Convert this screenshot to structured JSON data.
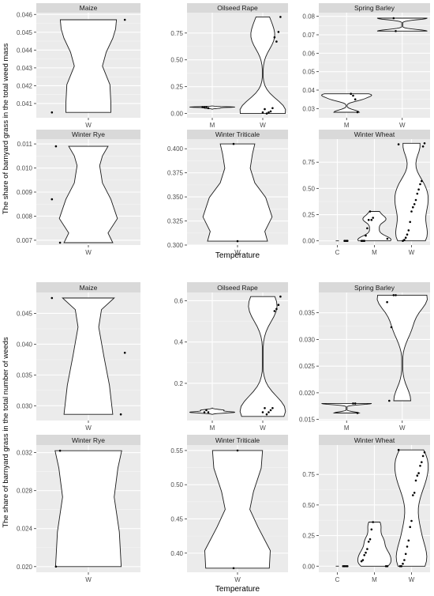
{
  "chart_data": [
    {
      "type": "violin",
      "ylabel": "The share of barnyard grass in the total weed mass",
      "xlabel": "Temperature",
      "panels": [
        {
          "name": "Maize",
          "categories": [
            "W"
          ],
          "ylim": [
            0.0402,
            0.0461
          ],
          "yticks": [
            0.041,
            0.042,
            0.043,
            0.044,
            0.045,
            0.046
          ],
          "ytick_labels": [
            "0.041",
            "0.042",
            "0.043",
            "0.044",
            "0.045",
            "0.046"
          ],
          "series": [
            {
              "category": "W",
              "min": 0.0405,
              "max": 0.0457,
              "points": [
                0.0405,
                0.0457
              ]
            }
          ]
        },
        {
          "name": "Oilseed Rape",
          "categories": [
            "M",
            "W"
          ],
          "ylim": [
            -0.04,
            0.94
          ],
          "yticks": [
            0.0,
            0.25,
            0.5,
            0.75
          ],
          "ytick_labels": [
            "0.00",
            "0.25",
            "0.50",
            "0.75"
          ],
          "series": [
            {
              "category": "M",
              "min": 0.04,
              "max": 0.07,
              "points": [
                0.05,
                0.06,
                0.06,
                0.06
              ]
            },
            {
              "category": "W",
              "min": 0.0,
              "max": 0.9,
              "points": [
                0.9,
                0.76,
                0.67,
                0.71,
                0.05,
                0.02,
                0.01,
                0.0,
                0.04,
                0.01
              ]
            }
          ]
        },
        {
          "name": "Spring Barley",
          "categories": [
            "M",
            "W"
          ],
          "ylim": [
            0.025,
            0.082
          ],
          "yticks": [
            0.03,
            0.04,
            0.05,
            0.06,
            0.07,
            0.08
          ],
          "ytick_labels": [
            "0.03",
            "0.04",
            "0.05",
            "0.06",
            "0.07",
            "0.08"
          ],
          "series": [
            {
              "category": "M",
              "min": 0.028,
              "max": 0.038,
              "points": [
                0.028,
                0.035,
                0.037,
                0.038
              ]
            },
            {
              "category": "W",
              "min": 0.072,
              "max": 0.079,
              "points": [
                0.072,
                0.079
              ]
            }
          ]
        },
        {
          "name": "Winter Rye",
          "categories": [
            "W"
          ],
          "ylim": [
            0.0068,
            0.0112
          ],
          "yticks": [
            0.007,
            0.008,
            0.009,
            0.01,
            0.011
          ],
          "ytick_labels": [
            "0.007",
            "0.008",
            "0.009",
            "0.010",
            "0.011"
          ],
          "series": [
            {
              "category": "W",
              "min": 0.0069,
              "max": 0.0109,
              "points": [
                0.0069,
                0.0109,
                0.0087
              ]
            }
          ]
        },
        {
          "name": "Winter Triticale",
          "categories": [
            "W"
          ],
          "ylim": [
            0.3,
            0.41
          ],
          "yticks": [
            0.3,
            0.325,
            0.35,
            0.375,
            0.4
          ],
          "ytick_labels": [
            "0.300",
            "0.325",
            "0.350",
            "0.375",
            "0.400"
          ],
          "series": [
            {
              "category": "W",
              "min": 0.304,
              "max": 0.405,
              "points": [
                0.304,
                0.405
              ]
            }
          ]
        },
        {
          "name": "Winter Wheat",
          "categories": [
            "C",
            "M",
            "W"
          ],
          "ylim": [
            -0.04,
            0.97
          ],
          "yticks": [
            0.0,
            0.25,
            0.5,
            0.75
          ],
          "ytick_labels": [
            "0.00",
            "0.25",
            "0.50",
            "0.75"
          ],
          "series": [
            {
              "category": "C",
              "min": 0.0,
              "max": 0.0,
              "points": [
                0.0,
                0.0,
                0.0
              ]
            },
            {
              "category": "M",
              "min": 0.0,
              "max": 0.28,
              "points": [
                0.22,
                0.2,
                0.28,
                0.2,
                0.12,
                0.05,
                0.0,
                0.0,
                0.0,
                0.02
              ]
            },
            {
              "category": "W",
              "min": 0.0,
              "max": 0.93,
              "points": [
                0.92,
                0.93,
                0.9,
                0.57,
                0.54,
                0.49,
                0.45,
                0.39,
                0.35,
                0.32,
                0.28,
                0.18,
                0.1,
                0.06,
                0.03,
                0.01,
                0.0
              ]
            }
          ]
        }
      ]
    },
    {
      "type": "violin",
      "ylabel": "The share of barnyard grass in the total number of weeds",
      "xlabel": "Temperature",
      "panels": [
        {
          "name": "Maize",
          "categories": [
            "W"
          ],
          "ylim": [
            0.0276,
            0.0484
          ],
          "yticks": [
            0.03,
            0.035,
            0.04,
            0.045
          ],
          "ytick_labels": [
            "0.030",
            "0.035",
            "0.040",
            "0.045"
          ],
          "series": [
            {
              "category": "W",
              "min": 0.0286,
              "max": 0.0475,
              "points": [
                0.0475,
                0.0386,
                0.0286
              ]
            }
          ]
        },
        {
          "name": "Oilseed Rape",
          "categories": [
            "M",
            "W"
          ],
          "ylim": [
            0.02,
            0.64
          ],
          "yticks": [
            0.2,
            0.4,
            0.6
          ],
          "ytick_labels": [
            "0.2",
            "0.4",
            "0.6"
          ],
          "series": [
            {
              "category": "M",
              "min": 0.05,
              "max": 0.08,
              "points": [
                0.06,
                0.07,
                0.06
              ]
            },
            {
              "category": "W",
              "min": 0.04,
              "max": 0.62,
              "points": [
                0.62,
                0.58,
                0.56,
                0.55,
                0.08,
                0.07,
                0.06,
                0.05,
                0.08,
                0.06
              ]
            }
          ]
        },
        {
          "name": "Spring Barley",
          "categories": [
            "M",
            "W"
          ],
          "ylim": [
            0.0148,
            0.0388
          ],
          "yticks": [
            0.015,
            0.02,
            0.025,
            0.03,
            0.035
          ],
          "ytick_labels": [
            "0.015",
            "0.020",
            "0.025",
            "0.030",
            "0.035"
          ],
          "series": [
            {
              "category": "M",
              "min": 0.0162,
              "max": 0.018,
              "points": [
                0.0162,
                0.018,
                0.018
              ]
            },
            {
              "category": "W",
              "min": 0.0185,
              "max": 0.0383,
              "points": [
                0.0383,
                0.0383,
                0.0323,
                0.0185,
                0.037
              ]
            }
          ]
        },
        {
          "name": "Winter Rye",
          "categories": [
            "W"
          ],
          "ylim": [
            0.0194,
            0.0328
          ],
          "yticks": [
            0.02,
            0.024,
            0.028,
            0.032
          ],
          "ytick_labels": [
            "0.020",
            "0.024",
            "0.028",
            "0.032"
          ],
          "series": [
            {
              "category": "W",
              "min": 0.02,
              "max": 0.0322,
              "points": [
                0.0322,
                0.02
              ]
            }
          ]
        },
        {
          "name": "Winter Triticale",
          "categories": [
            "W"
          ],
          "ylim": [
            0.372,
            0.558
          ],
          "yticks": [
            0.4,
            0.45,
            0.5,
            0.55
          ],
          "ytick_labels": [
            "0.40",
            "0.45",
            "0.50",
            "0.55"
          ],
          "series": [
            {
              "category": "W",
              "min": 0.378,
              "max": 0.55,
              "points": [
                0.55,
                0.378
              ]
            }
          ]
        },
        {
          "name": "Winter Wheat",
          "categories": [
            "C",
            "M",
            "W"
          ],
          "ylim": [
            -0.05,
            0.99
          ],
          "yticks": [
            0.0,
            0.25,
            0.5,
            0.75
          ],
          "ytick_labels": [
            "0.00",
            "0.25",
            "0.50",
            "0.75"
          ],
          "series": [
            {
              "category": "C",
              "min": 0.0,
              "max": 0.0,
              "points": [
                0.0,
                0.0,
                0.0,
                0.0
              ]
            },
            {
              "category": "M",
              "min": 0.0,
              "max": 0.36,
              "points": [
                0.36,
                0.3,
                0.22,
                0.2,
                0.14,
                0.11,
                0.09,
                0.05,
                0.04,
                0.0,
                0.0
              ]
            },
            {
              "category": "W",
              "min": 0.0,
              "max": 0.95,
              "points": [
                0.95,
                0.93,
                0.9,
                0.85,
                0.82,
                0.76,
                0.74,
                0.7,
                0.6,
                0.58,
                0.37,
                0.32,
                0.21,
                0.16,
                0.1,
                0.05,
                0.02,
                0.0,
                0.0
              ]
            }
          ]
        }
      ]
    }
  ]
}
